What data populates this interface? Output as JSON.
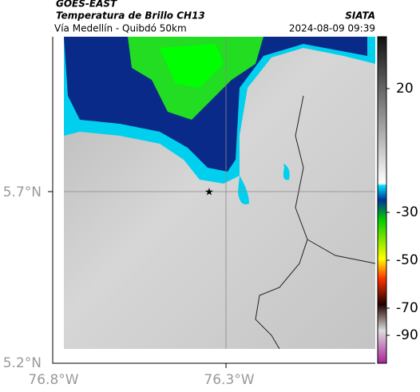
{
  "header": {
    "title": "GOES-EAST",
    "subtitle": "Temperatura de Brillo CH13",
    "region": "Vía Medellín - Quibdó 50km",
    "source": "SIATA",
    "timestamp": "2024-08-09 09:39"
  },
  "map": {
    "lat_labels": [
      "5.7°N",
      "5.2°N"
    ],
    "lon_labels": [
      "76.8°W",
      "76.3°W"
    ]
  },
  "colorbar": {
    "ticks": [
      20,
      -30,
      -50,
      -70,
      -90
    ]
  }
}
